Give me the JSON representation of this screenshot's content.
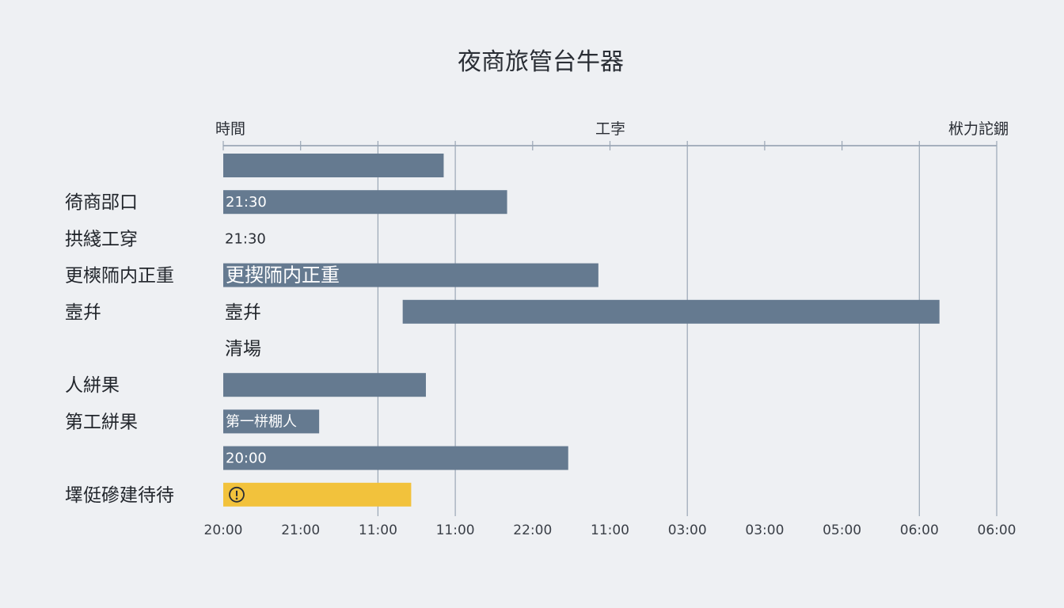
{
  "chart_data": {
    "type": "gantt",
    "title": "夜商旅管台牛器",
    "headers": {
      "left": "時間",
      "center": "工孛",
      "right": "栿力詑錋"
    },
    "x_ticks": [
      "20:00",
      "21:00",
      "11:00",
      "11:00",
      "22:00",
      "11:00",
      "03:00",
      "03:00",
      "05:00",
      "06:00",
      "06:00"
    ],
    "colors": {
      "bar": "#657a90",
      "warning": "#f2c23c",
      "grid": "#9aa6b5"
    },
    "rows": [
      {
        "label": "",
        "start": 0.0,
        "end": 2.85,
        "bar_text": "",
        "plain_text": "",
        "status": "normal"
      },
      {
        "label": "徛商郘口",
        "start": 0.0,
        "end": 3.67,
        "bar_text": "21:30",
        "plain_text": "",
        "status": "normal"
      },
      {
        "label": "拱綫工穿",
        "start": null,
        "end": null,
        "bar_text": "",
        "plain_text": "21:30",
        "status": "normal"
      },
      {
        "label": "更樉陑内正重",
        "start": 0.0,
        "end": 4.85,
        "bar_text": "更揳陑内正重",
        "plain_text": "",
        "status": "normal"
      },
      {
        "label": "壼幷",
        "start": 2.32,
        "end": 9.26,
        "bar_text": "",
        "plain_text": "壼幷",
        "status": "normal"
      },
      {
        "label": "",
        "start": null,
        "end": null,
        "bar_text": "",
        "plain_text": "清場",
        "status": "normal"
      },
      {
        "label": "人絣果",
        "start": 0.0,
        "end": 2.62,
        "bar_text": "",
        "plain_text": "",
        "status": "normal"
      },
      {
        "label": "第工絣果",
        "start": 0.0,
        "end": 1.24,
        "bar_text": "第一栟棚人",
        "plain_text": "",
        "status": "normal"
      },
      {
        "label": "",
        "start": 0.0,
        "end": 4.46,
        "bar_text": "20:00",
        "plain_text": "",
        "status": "normal"
      },
      {
        "label": "墿侹磣建待待",
        "start": 0.0,
        "end": 2.43,
        "bar_text": "",
        "plain_text": "",
        "status": "warning",
        "icon": "warning-icon"
      }
    ]
  }
}
